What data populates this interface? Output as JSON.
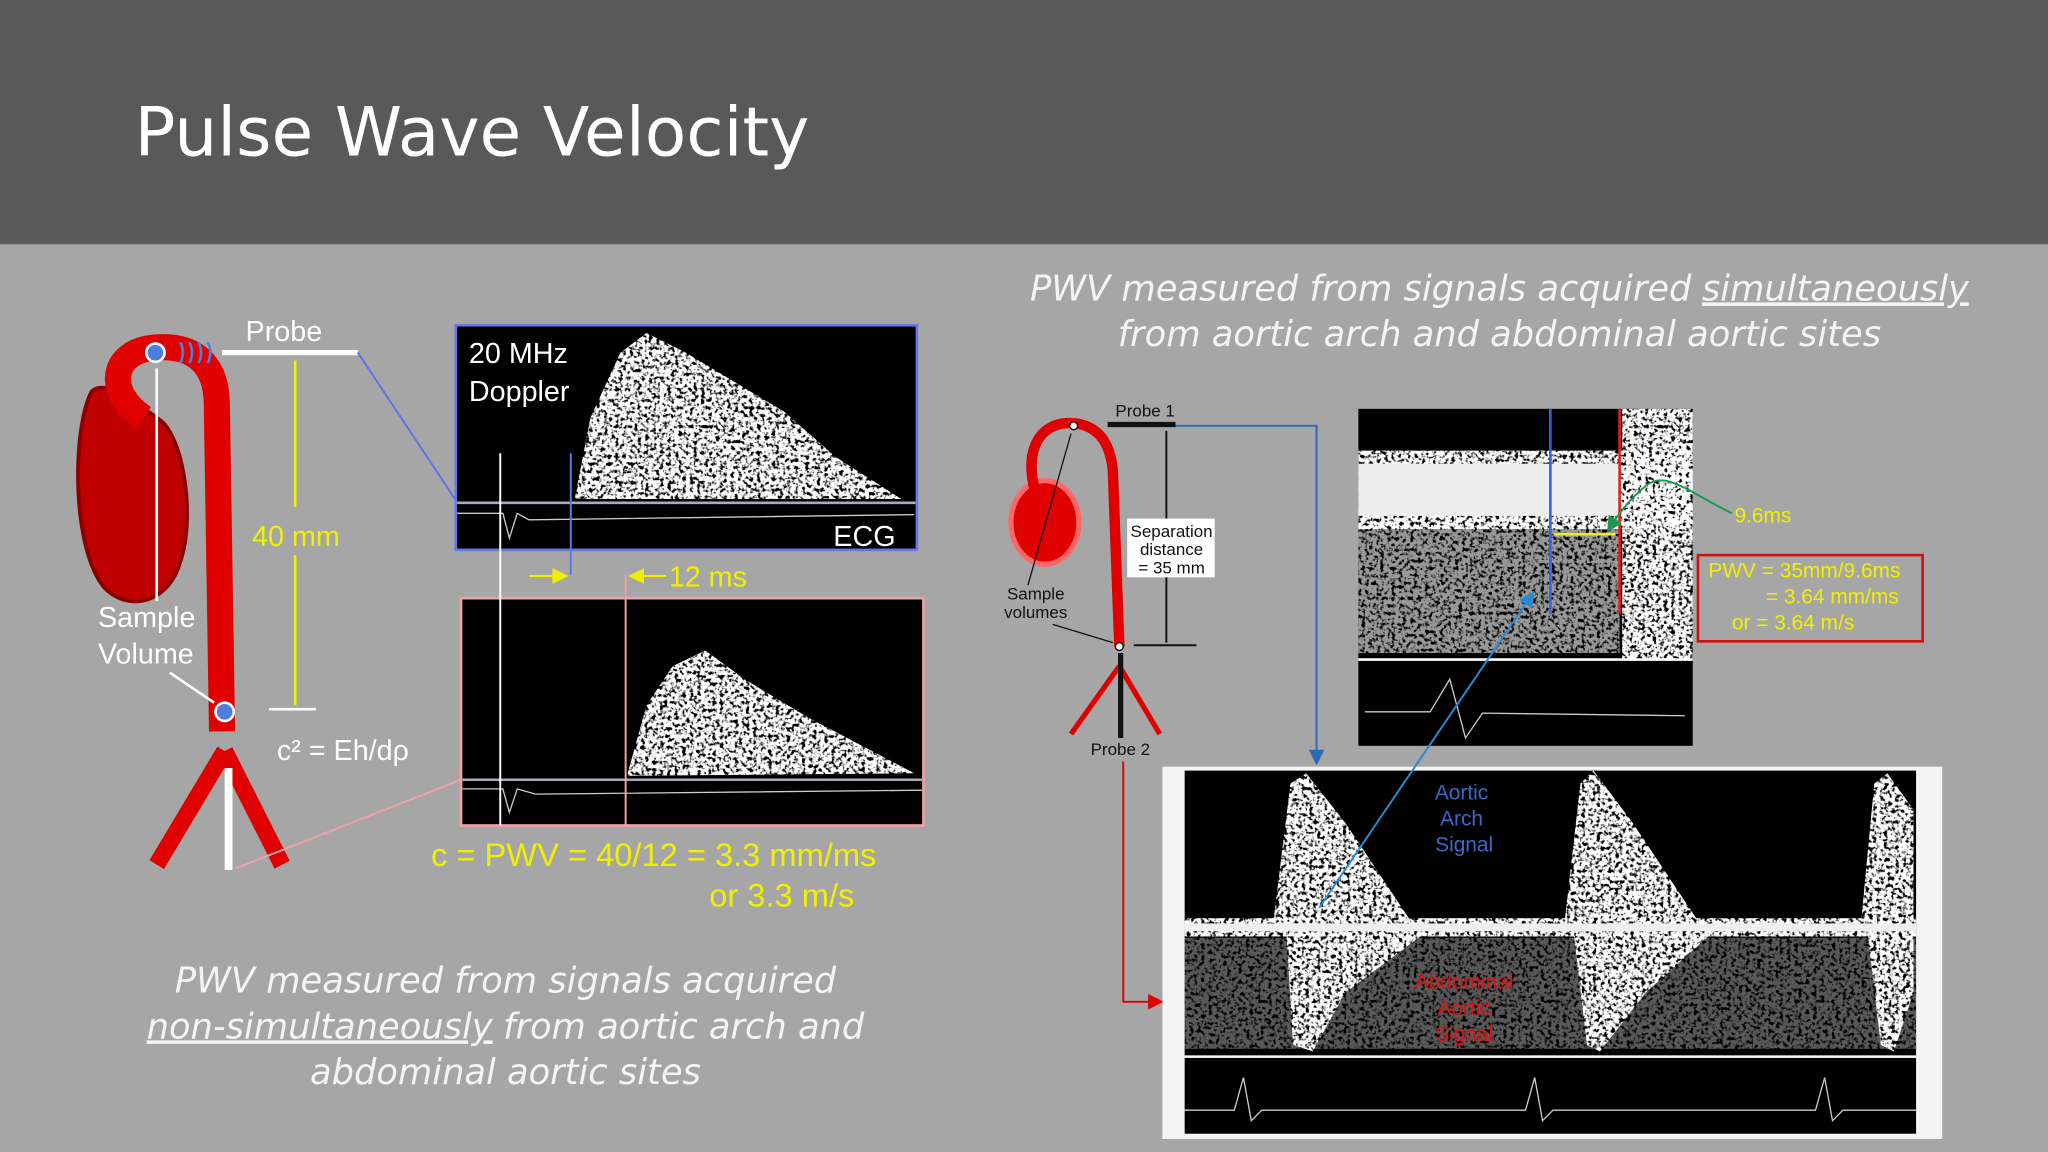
{
  "header": {
    "title": "Pulse Wave Velocity"
  },
  "left_panel": {
    "probe_label": "Probe",
    "distance_label": "40 mm",
    "sample_volume_label": [
      "Sample",
      "Volume"
    ],
    "equation": "c² = Eh/dρ",
    "doppler_label": [
      "20 MHz",
      "Doppler"
    ],
    "ecg_label": "ECG",
    "delay_label": "12 ms",
    "pwv_result": [
      "c = PWV = 40/12 = 3.3 mm/ms",
      "or 3.3 m/s"
    ],
    "caption": {
      "line1": "PWV measured from signals acquired",
      "line2_underlined": "non-simultaneously",
      "line2_rest": "from aortic arch and",
      "line3": "abdominal aortic sites"
    }
  },
  "right_panel": {
    "caption": {
      "line1": "PWV measured from signals acquired",
      "line1_underlined": "simultaneously",
      "line2": "from aortic arch and abdominal aortic sites"
    },
    "probe1_label": "Probe 1",
    "probe2_label": "Probe 2",
    "separation_label": [
      "Separation",
      "distance",
      "= 35 mm"
    ],
    "sample_volumes_label": [
      "Sample",
      "volumes"
    ],
    "delay_label": "9.6ms",
    "pwv_result": [
      "PWV  = 35mm/9.6ms",
      "= 3.64 mm/ms",
      "or   = 3.64 m/s"
    ],
    "aortic_arch_label": [
      "Aortic",
      "Arch",
      "Signal"
    ],
    "abdominal_label": [
      "Abdominal",
      "Aortic",
      "Signal"
    ]
  }
}
